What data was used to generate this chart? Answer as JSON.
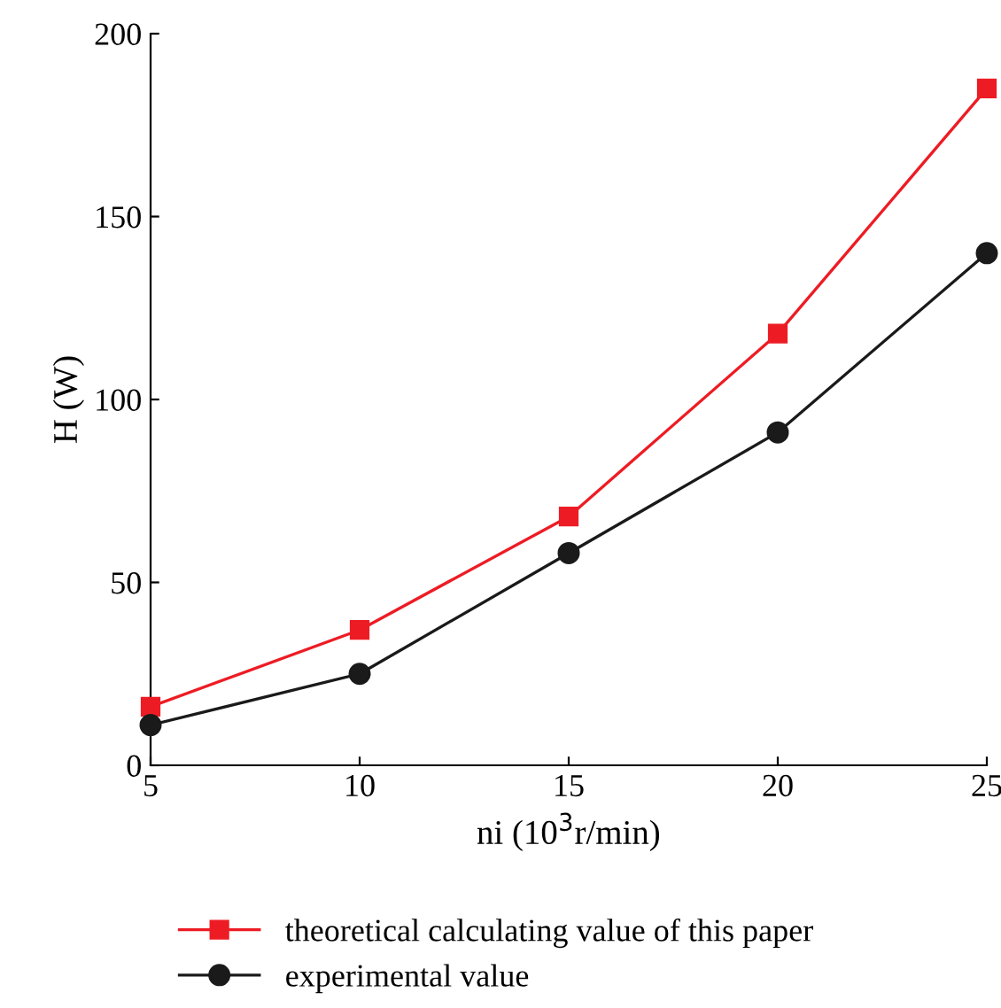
{
  "chart_data": {
    "type": "line",
    "xlabel": "ni (10$^{3}$r/min)",
    "ylabel": "H (W)",
    "x": [
      5,
      10,
      15,
      20,
      25
    ],
    "series": [
      {
        "name": "theoretical calculating value of this paper",
        "color": "#ed1c24",
        "values": [
          16,
          37,
          68,
          118,
          185
        ],
        "marker": "square"
      },
      {
        "name": "experimental value",
        "color": "#1a1a1a",
        "values": [
          11,
          25,
          58,
          91,
          140
        ],
        "marker": "circle"
      }
    ],
    "xlim": [
      5,
      25
    ],
    "xticks": [
      5,
      10,
      15,
      20,
      25
    ],
    "ylim": [
      0,
      200
    ],
    "yticks": [
      0,
      50,
      100,
      150,
      200
    ],
    "grid": false,
    "legend": "bottom",
    "line_style": "solid"
  }
}
